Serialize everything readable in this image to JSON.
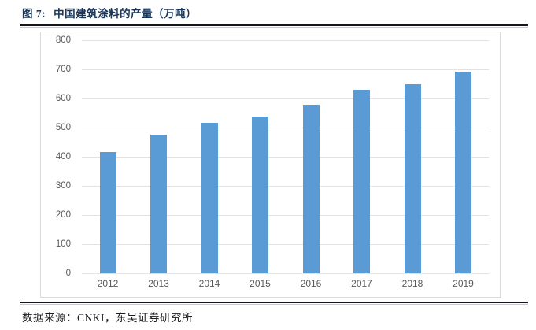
{
  "figure": {
    "label": "图 7:",
    "title": "中国建筑涂料的产量（万吨）",
    "source": "数据来源：CNKI，东吴证券研究所"
  },
  "chart_data": {
    "type": "bar",
    "title": "中国建筑涂料的产量（万吨）",
    "categories": [
      "2012",
      "2013",
      "2014",
      "2015",
      "2016",
      "2017",
      "2018",
      "2019"
    ],
    "values": [
      416,
      477,
      516,
      538,
      578,
      630,
      649,
      693
    ],
    "xlabel": "",
    "ylabel": "",
    "ylim": [
      0,
      800
    ],
    "ytick_step": 100,
    "grid": true,
    "legend": "none",
    "bar_color": "#5b9bd5",
    "gridline_color": "#e2e2e2",
    "axis_label_color": "#595959",
    "frame_color": "#d9d9d9"
  },
  "colors": {
    "title_navy": "#17365d",
    "rule_dark": "#15151f",
    "background": "#ffffff"
  }
}
